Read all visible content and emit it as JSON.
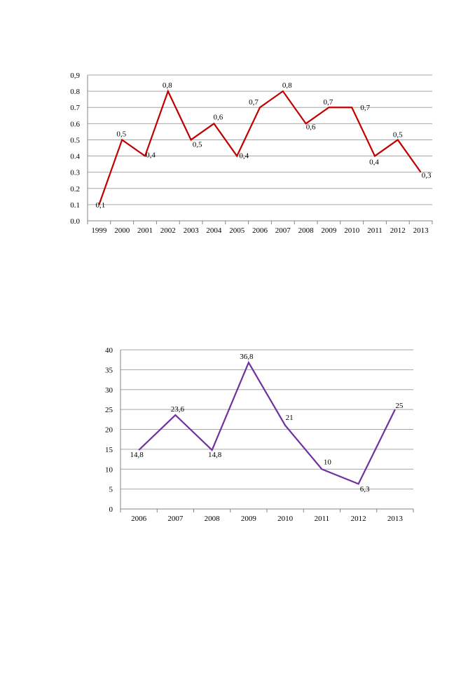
{
  "chart_data": [
    {
      "type": "line",
      "title": "",
      "xlabel": "",
      "ylabel": "",
      "x": [
        "1999",
        "2000",
        "2001",
        "2002",
        "2003",
        "2004",
        "2005",
        "2006",
        "2007",
        "2008",
        "2009",
        "2010",
        "2011",
        "2012",
        "2013"
      ],
      "series": [
        {
          "values": [
            0.1,
            0.5,
            0.4,
            0.8,
            0.5,
            0.6,
            0.4,
            0.7,
            0.8,
            0.6,
            0.7,
            0.7,
            0.4,
            0.5,
            0.3
          ],
          "labels": [
            "0,1",
            "0,5",
            "0,4",
            "0,8",
            "0,5",
            "0,6",
            "0,4",
            "0,7",
            "0,8",
            "0,6",
            "0,7",
            "0,7",
            "0,4",
            "0,5",
            "0,3"
          ],
          "color": "#c00000"
        }
      ],
      "ylim": [
        0,
        0.9
      ],
      "yticks": [
        "0.0",
        "0.1",
        "0.2",
        "0.3",
        "0.4",
        "0.5",
        "0.6",
        "0.7",
        "0.8",
        "0,9"
      ],
      "grid": true,
      "legend": "none"
    },
    {
      "type": "line",
      "title": "",
      "xlabel": "",
      "ylabel": "",
      "x": [
        "2006",
        "2007",
        "2008",
        "2009",
        "2010",
        "2011",
        "2012",
        "2013"
      ],
      "series": [
        {
          "values": [
            14.8,
            23.6,
            14.8,
            36.8,
            21,
            10,
            6.3,
            25
          ],
          "labels": [
            "14,8",
            "23,6",
            "14,8",
            "36,8",
            "21",
            "10",
            "6,3",
            "25"
          ],
          "color": "#7030a0"
        }
      ],
      "ylim": [
        0,
        40
      ],
      "yticks": [
        "0",
        "5",
        "10",
        "15",
        "20",
        "25",
        "30",
        "35",
        "40"
      ],
      "grid": true,
      "legend": "none"
    }
  ]
}
